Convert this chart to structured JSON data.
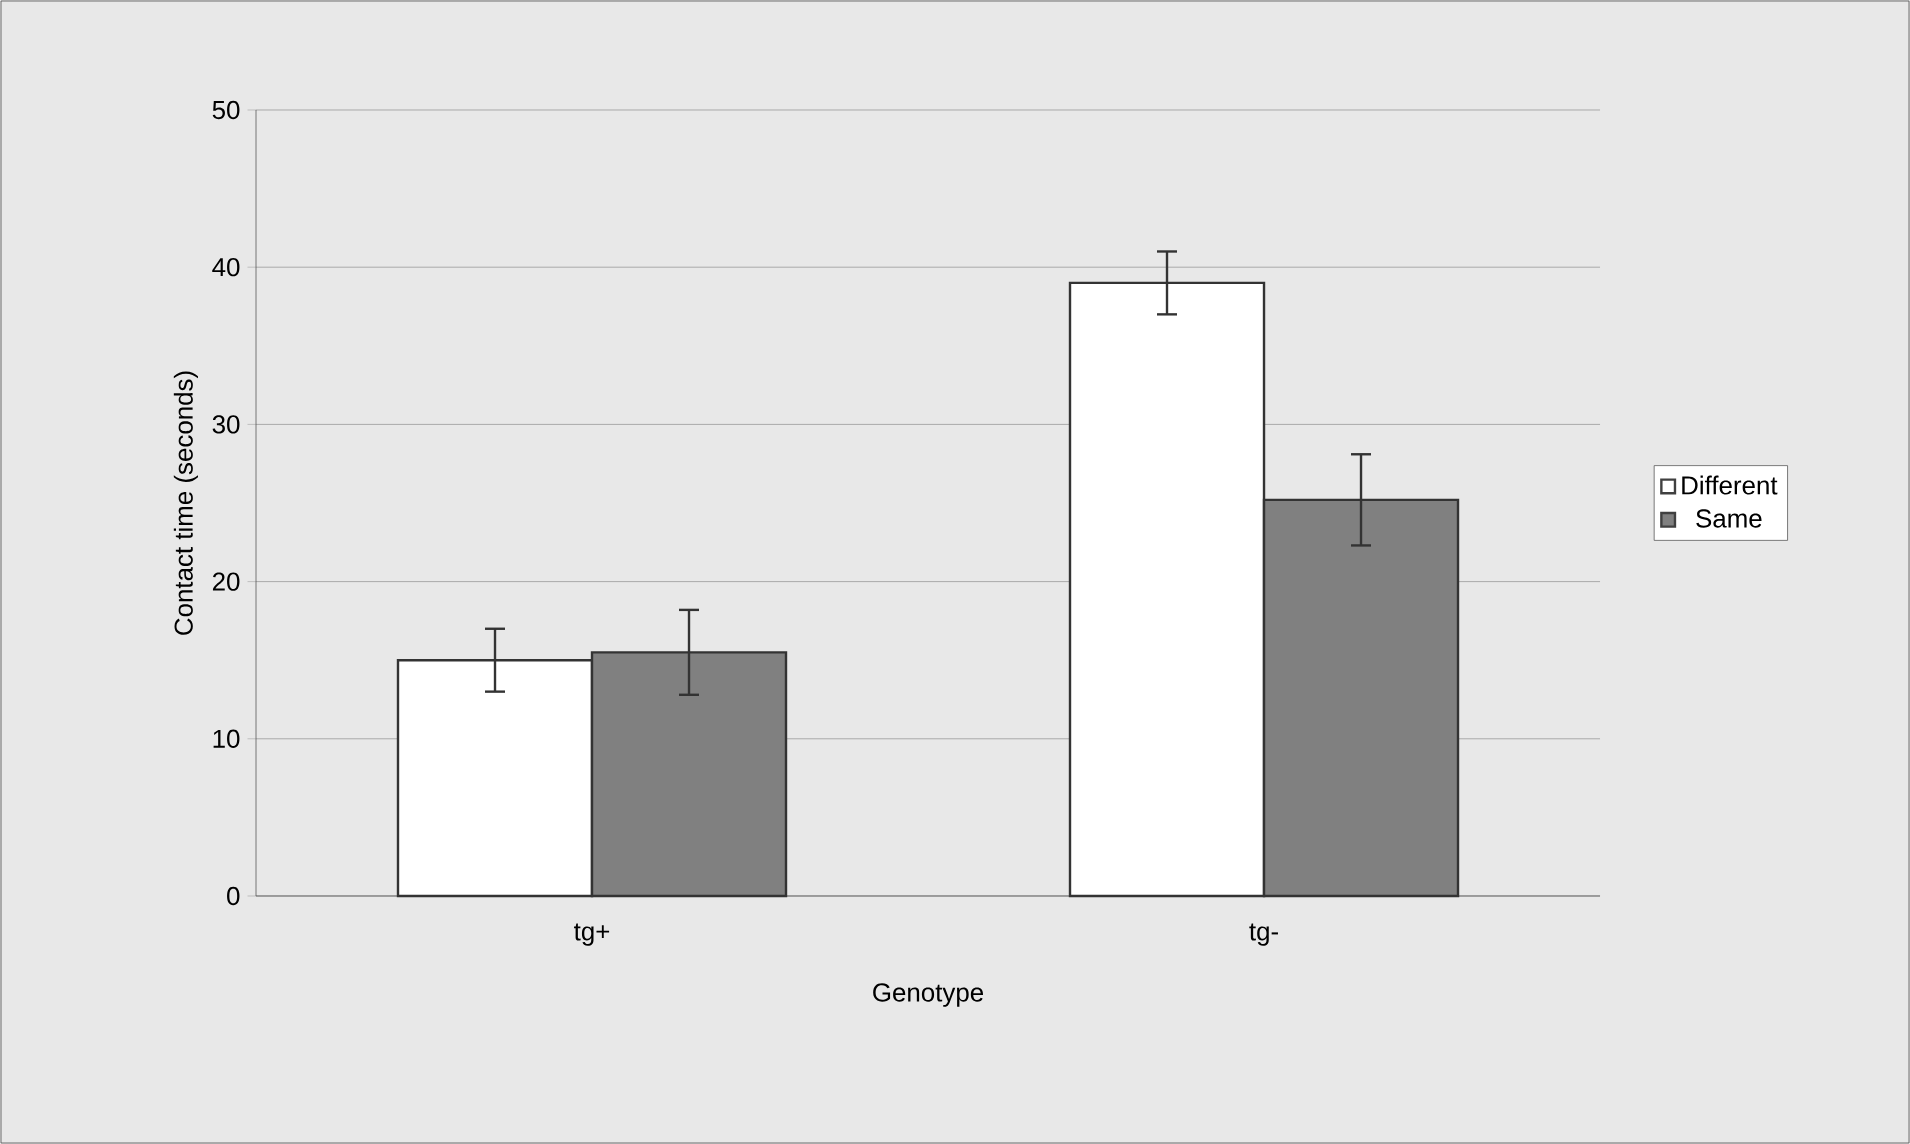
{
  "chart_data": {
    "type": "bar",
    "xlabel": "Genotype",
    "ylabel": "Contact time (seconds)",
    "categories": [
      "tg+",
      "tg-"
    ],
    "series": [
      {
        "name": "Different",
        "color": "#ffffff",
        "values": [
          15,
          39
        ],
        "errors": [
          2,
          2
        ]
      },
      {
        "name": "Same",
        "color": "#808080",
        "values": [
          15.5,
          25.2
        ],
        "errors": [
          2.7,
          2.9
        ]
      }
    ],
    "ylim": [
      0,
      50
    ],
    "yticks": [
      0,
      10,
      20,
      30,
      40,
      50
    ],
    "grid": "y",
    "legend": "right"
  }
}
